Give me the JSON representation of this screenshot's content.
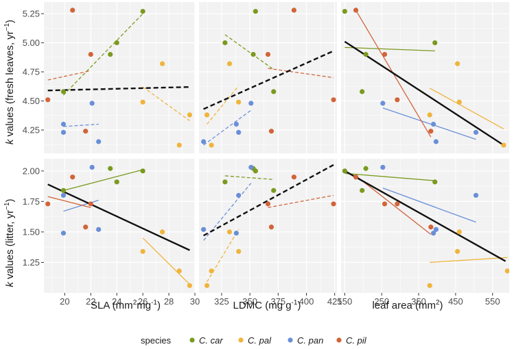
{
  "colors": {
    "C. car": "#7a9a1f",
    "C. pal": "#f0b43c",
    "C. pan": "#6a8fd8",
    "C. pil": "#d2643a",
    "overall": "#111111",
    "panel_bg": "#f2f2f2",
    "grid": "#ffffff"
  },
  "y_titles": {
    "top": {
      "k": "k",
      "rest": " values (fresh leaves, yr",
      "sup": "−1",
      "close": ")"
    },
    "bottom": {
      "k": "k",
      "rest": " values (litter, yr",
      "sup": "−1",
      "close": ")"
    }
  },
  "x_titles": {
    "sla": {
      "pre": "SLA (mm",
      "sup1": "2",
      "mid": "mg",
      "sup2": "-1",
      "post": ")"
    },
    "ldmc": {
      "pre": "LDMC (mg g",
      "sup1": "-1",
      "post": ")"
    },
    "area": {
      "pre": "leaf area (mm",
      "sup1": "2",
      "post": ")"
    }
  },
  "legend": {
    "title": "species",
    "items": [
      "C. car",
      "C. pal",
      "C. pan",
      "C. pil"
    ]
  },
  "chart_data": {
    "type": "scatter",
    "layout": "faceted grid 2 rows x 3 columns",
    "rows": [
      {
        "name": "fresh",
        "ylabel": "k values (fresh leaves, yr−1)",
        "ylim": [
          4.05,
          5.35
        ],
        "yticks": [
          4.25,
          4.5,
          4.75,
          5.0,
          5.25
        ],
        "yticklabels": [
          "4.25",
          "4.50",
          "4.75",
          "5.00",
          "5.25"
        ]
      },
      {
        "name": "litter",
        "ylabel": "k values (litter, yr−1)",
        "ylim": [
          1.0,
          2.1
        ],
        "yticks": [
          1.25,
          1.5,
          1.75,
          2.0
        ],
        "yticklabels": [
          "1.25",
          "1.50",
          "1.75",
          "2.00"
        ]
      }
    ],
    "cols": [
      {
        "name": "sla",
        "xlabel": "SLA (mm2mg-1)",
        "xlim": [
          18.4,
          30.0
        ],
        "xticks": [
          20,
          22,
          24,
          26,
          28,
          30
        ],
        "xticklabels": [
          "20",
          "22",
          "24",
          "26",
          "28",
          "30"
        ]
      },
      {
        "name": "ldmc",
        "xlabel": "LDMC (mg g-1)",
        "xlim": [
          305,
          427
        ],
        "xticks": [
          325,
          350,
          375,
          400,
          425
        ],
        "xticklabels": [
          "325",
          "350",
          "375",
          "400",
          "425"
        ]
      },
      {
        "name": "area",
        "xlabel": "leaf area (mm2)",
        "xlim": [
          140,
          595
        ],
        "xticks": [
          150,
          250,
          350,
          450,
          550
        ],
        "xticklabels": [
          "150",
          "250",
          "350",
          "450",
          "550"
        ]
      }
    ],
    "panels": [
      {
        "row": 0,
        "col": 0,
        "points": [
          {
            "s": "C. car",
            "x": 19.9,
            "y": 4.58
          },
          {
            "s": "C. car",
            "x": 23.5,
            "y": 4.9
          },
          {
            "s": "C. car",
            "x": 24.0,
            "y": 5.0
          },
          {
            "s": "C. car",
            "x": 26.0,
            "y": 5.27
          },
          {
            "s": "C. pal",
            "x": 26.0,
            "y": 4.49
          },
          {
            "s": "C. pal",
            "x": 27.5,
            "y": 4.82
          },
          {
            "s": "C. pal",
            "x": 28.8,
            "y": 4.12
          },
          {
            "s": "C. pal",
            "x": 29.6,
            "y": 4.38
          },
          {
            "s": "C. pan",
            "x": 19.9,
            "y": 4.3
          },
          {
            "s": "C. pan",
            "x": 19.9,
            "y": 4.23
          },
          {
            "s": "C. pan",
            "x": 22.1,
            "y": 4.48
          },
          {
            "s": "C. pan",
            "x": 22.6,
            "y": 4.15
          },
          {
            "s": "C. pil",
            "x": 18.7,
            "y": 4.51
          },
          {
            "s": "C. pil",
            "x": 20.6,
            "y": 5.28
          },
          {
            "s": "C. pil",
            "x": 21.6,
            "y": 4.24
          },
          {
            "s": "C. pil",
            "x": 22.0,
            "y": 4.9
          }
        ],
        "lines": [
          {
            "s": "overall",
            "dash": true,
            "x": [
              18.7,
              29.6
            ],
            "y": [
              4.59,
              4.62
            ]
          },
          {
            "s": "C. car",
            "dash": true,
            "x": [
              19.9,
              26.0
            ],
            "y": [
              4.55,
              5.25
            ]
          },
          {
            "s": "C. pal",
            "dash": true,
            "x": [
              26.0,
              29.6
            ],
            "y": [
              4.62,
              4.33
            ]
          },
          {
            "s": "C. pan",
            "dash": true,
            "x": [
              19.9,
              22.6
            ],
            "y": [
              4.28,
              4.3
            ]
          },
          {
            "s": "C. pil",
            "dash": true,
            "x": [
              18.7,
              22.0
            ],
            "y": [
              4.68,
              4.76
            ]
          }
        ]
      },
      {
        "row": 0,
        "col": 1,
        "points": [
          {
            "s": "C. car",
            "x": 328,
            "y": 5.0
          },
          {
            "s": "C. car",
            "x": 353,
            "y": 4.9
          },
          {
            "s": "C. car",
            "x": 355,
            "y": 5.27
          },
          {
            "s": "C. car",
            "x": 371,
            "y": 4.58
          },
          {
            "s": "C. pal",
            "x": 316,
            "y": 4.12
          },
          {
            "s": "C. pal",
            "x": 332,
            "y": 4.82
          },
          {
            "s": "C. pal",
            "x": 340,
            "y": 4.49
          },
          {
            "s": "C. pal",
            "x": 312,
            "y": 4.38
          },
          {
            "s": "C. pan",
            "x": 309,
            "y": 4.15
          },
          {
            "s": "C. pan",
            "x": 338,
            "y": 4.3
          },
          {
            "s": "C. pan",
            "x": 340,
            "y": 4.23
          },
          {
            "s": "C. pan",
            "x": 351,
            "y": 4.48
          },
          {
            "s": "C. pil",
            "x": 366,
            "y": 4.9
          },
          {
            "s": "C. pil",
            "x": 369,
            "y": 4.24
          },
          {
            "s": "C. pil",
            "x": 389,
            "y": 5.28
          },
          {
            "s": "C. pil",
            "x": 424,
            "y": 4.51
          }
        ],
        "lines": [
          {
            "s": "overall",
            "dash": true,
            "x": [
              309,
              424
            ],
            "y": [
              4.43,
              4.93
            ]
          },
          {
            "s": "C. car",
            "dash": true,
            "x": [
              328,
              371
            ],
            "y": [
              5.07,
              4.77
            ]
          },
          {
            "s": "C. pal",
            "dash": true,
            "x": [
              312,
              340
            ],
            "y": [
              4.3,
              4.63
            ]
          },
          {
            "s": "C. pan",
            "dash": true,
            "x": [
              309,
              351
            ],
            "y": [
              4.12,
              4.42
            ]
          },
          {
            "s": "C. pil",
            "dash": true,
            "x": [
              366,
              424
            ],
            "y": [
              4.78,
              4.7
            ]
          }
        ]
      },
      {
        "row": 0,
        "col": 2,
        "points": [
          {
            "s": "C. car",
            "x": 150,
            "y": 5.27
          },
          {
            "s": "C. car",
            "x": 207,
            "y": 4.9
          },
          {
            "s": "C. car",
            "x": 197,
            "y": 4.58
          },
          {
            "s": "C. car",
            "x": 394,
            "y": 5.0
          },
          {
            "s": "C. pal",
            "x": 380,
            "y": 4.38
          },
          {
            "s": "C. pal",
            "x": 455,
            "y": 4.82
          },
          {
            "s": "C. pal",
            "x": 460,
            "y": 4.49
          },
          {
            "s": "C. pal",
            "x": 580,
            "y": 4.12
          },
          {
            "s": "C. pan",
            "x": 253,
            "y": 4.48
          },
          {
            "s": "C. pan",
            "x": 390,
            "y": 4.3
          },
          {
            "s": "C. pan",
            "x": 397,
            "y": 4.15
          },
          {
            "s": "C. pan",
            "x": 505,
            "y": 4.23
          },
          {
            "s": "C. pil",
            "x": 180,
            "y": 5.28
          },
          {
            "s": "C. pil",
            "x": 258,
            "y": 4.9
          },
          {
            "s": "C. pil",
            "x": 292,
            "y": 4.51
          },
          {
            "s": "C. pil",
            "x": 383,
            "y": 4.24
          }
        ],
        "lines": [
          {
            "s": "overall",
            "dash": false,
            "x": [
              150,
              580
            ],
            "y": [
              5.01,
              4.12
            ]
          },
          {
            "s": "C. car",
            "dash": false,
            "x": [
              150,
              394
            ],
            "y": [
              4.96,
              4.93
            ]
          },
          {
            "s": "C. pal",
            "dash": false,
            "x": [
              380,
              580
            ],
            "y": [
              4.61,
              4.26
            ]
          },
          {
            "s": "C. pan",
            "dash": false,
            "x": [
              253,
              505
            ],
            "y": [
              4.44,
              4.17
            ]
          },
          {
            "s": "C. pil",
            "dash": false,
            "x": [
              180,
              383
            ],
            "y": [
              5.28,
              4.19
            ]
          }
        ]
      },
      {
        "row": 1,
        "col": 0,
        "points": [
          {
            "s": "C. car",
            "x": 19.9,
            "y": 1.84
          },
          {
            "s": "C. car",
            "x": 23.5,
            "y": 2.02
          },
          {
            "s": "C. car",
            "x": 24.0,
            "y": 1.91
          },
          {
            "s": "C. car",
            "x": 26.0,
            "y": 2.0
          },
          {
            "s": "C. pal",
            "x": 26.0,
            "y": 1.34
          },
          {
            "s": "C. pal",
            "x": 27.5,
            "y": 1.5
          },
          {
            "s": "C. pal",
            "x": 28.8,
            "y": 1.18
          },
          {
            "s": "C. pal",
            "x": 29.6,
            "y": 1.06
          },
          {
            "s": "C. pan",
            "x": 19.9,
            "y": 1.8
          },
          {
            "s": "C. pan",
            "x": 19.9,
            "y": 1.49
          },
          {
            "s": "C. pan",
            "x": 22.1,
            "y": 2.03
          },
          {
            "s": "C. pan",
            "x": 22.6,
            "y": 1.52
          },
          {
            "s": "C. pil",
            "x": 18.7,
            "y": 1.73
          },
          {
            "s": "C. pil",
            "x": 20.6,
            "y": 1.95
          },
          {
            "s": "C. pil",
            "x": 21.6,
            "y": 1.54
          },
          {
            "s": "C. pil",
            "x": 22.0,
            "y": 1.73
          }
        ],
        "lines": [
          {
            "s": "overall",
            "dash": false,
            "x": [
              18.7,
              29.6
            ],
            "y": [
              1.89,
              1.35
            ]
          },
          {
            "s": "C. car",
            "dash": false,
            "x": [
              19.9,
              26.0
            ],
            "y": [
              1.84,
              2.01
            ]
          },
          {
            "s": "C. pal",
            "dash": false,
            "x": [
              26.0,
              29.6
            ],
            "y": [
              1.45,
              1.07
            ]
          },
          {
            "s": "C. pan",
            "dash": false,
            "x": [
              19.9,
              22.6
            ],
            "y": [
              1.67,
              1.76
            ]
          },
          {
            "s": "C. pil",
            "dash": false,
            "x": [
              18.7,
              22.0
            ],
            "y": [
              1.79,
              1.7
            ]
          }
        ]
      },
      {
        "row": 1,
        "col": 1,
        "points": [
          {
            "s": "C. car",
            "x": 328,
            "y": 1.91
          },
          {
            "s": "C. car",
            "x": 353,
            "y": 2.02
          },
          {
            "s": "C. car",
            "x": 355,
            "y": 2.0
          },
          {
            "s": "C. car",
            "x": 371,
            "y": 1.84
          },
          {
            "s": "C. pal",
            "x": 316,
            "y": 1.18
          },
          {
            "s": "C. pal",
            "x": 332,
            "y": 1.5
          },
          {
            "s": "C. pal",
            "x": 340,
            "y": 1.34
          },
          {
            "s": "C. pal",
            "x": 312,
            "y": 1.06
          },
          {
            "s": "C. pan",
            "x": 309,
            "y": 1.52
          },
          {
            "s": "C. pan",
            "x": 338,
            "y": 1.49
          },
          {
            "s": "C. pan",
            "x": 340,
            "y": 1.8
          },
          {
            "s": "C. pan",
            "x": 351,
            "y": 2.03
          },
          {
            "s": "C. pil",
            "x": 366,
            "y": 1.73
          },
          {
            "s": "C. pil",
            "x": 369,
            "y": 1.54
          },
          {
            "s": "C. pil",
            "x": 389,
            "y": 1.95
          },
          {
            "s": "C. pil",
            "x": 424,
            "y": 1.73
          }
        ],
        "lines": [
          {
            "s": "overall",
            "dash": true,
            "x": [
              309,
              424
            ],
            "y": [
              1.47,
              2.05
            ]
          },
          {
            "s": "C. car",
            "dash": true,
            "x": [
              328,
              371
            ],
            "y": [
              1.96,
              1.93
            ]
          },
          {
            "s": "C. pal",
            "dash": true,
            "x": [
              312,
              340
            ],
            "y": [
              1.09,
              1.52
            ]
          },
          {
            "s": "C. pan",
            "dash": true,
            "x": [
              309,
              351
            ],
            "y": [
              1.43,
              1.9
            ]
          },
          {
            "s": "C. pil",
            "dash": true,
            "x": [
              366,
              424
            ],
            "y": [
              1.7,
              1.8
            ]
          }
        ]
      },
      {
        "row": 1,
        "col": 2,
        "points": [
          {
            "s": "C. car",
            "x": 150,
            "y": 2.0
          },
          {
            "s": "C. car",
            "x": 207,
            "y": 2.02
          },
          {
            "s": "C. car",
            "x": 197,
            "y": 1.84
          },
          {
            "s": "C. car",
            "x": 394,
            "y": 1.91
          },
          {
            "s": "C. pal",
            "x": 380,
            "y": 1.06
          },
          {
            "s": "C. pal",
            "x": 455,
            "y": 1.34
          },
          {
            "s": "C. pal",
            "x": 460,
            "y": 1.5
          },
          {
            "s": "C. pal",
            "x": 590,
            "y": 1.18
          },
          {
            "s": "C. pan",
            "x": 253,
            "y": 2.03
          },
          {
            "s": "C. pan",
            "x": 390,
            "y": 1.49
          },
          {
            "s": "C. pan",
            "x": 397,
            "y": 1.52
          },
          {
            "s": "C. pan",
            "x": 505,
            "y": 1.8
          },
          {
            "s": "C. pil",
            "x": 180,
            "y": 1.95
          },
          {
            "s": "C. pil",
            "x": 258,
            "y": 1.73
          },
          {
            "s": "C. pil",
            "x": 292,
            "y": 1.73
          },
          {
            "s": "C. pil",
            "x": 383,
            "y": 1.54
          }
        ],
        "lines": [
          {
            "s": "overall",
            "dash": false,
            "x": [
              150,
              585
            ],
            "y": [
              2.0,
              1.26
            ]
          },
          {
            "s": "C. car",
            "dash": false,
            "x": [
              150,
              394
            ],
            "y": [
              1.98,
              1.92
            ]
          },
          {
            "s": "C. pal",
            "dash": false,
            "x": [
              380,
              590
            ],
            "y": [
              1.25,
              1.29
            ]
          },
          {
            "s": "C. pan",
            "dash": false,
            "x": [
              253,
              505
            ],
            "y": [
              1.86,
              1.58
            ]
          },
          {
            "s": "C. pil",
            "dash": false,
            "x": [
              180,
              383
            ],
            "y": [
              1.96,
              1.48
            ]
          }
        ]
      }
    ]
  }
}
